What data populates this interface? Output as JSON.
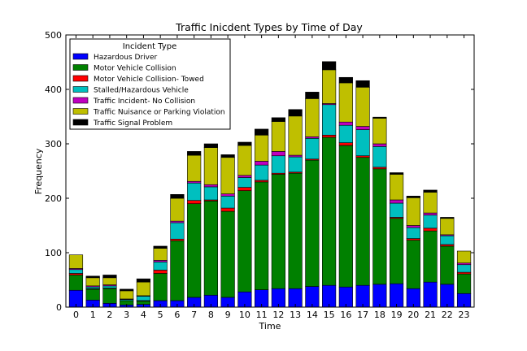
{
  "chart_data": {
    "type": "bar",
    "stacked": true,
    "title": "Traffic Inicdent Types by Time of Day",
    "xlabel": "Time",
    "ylabel": "Frequency",
    "ylim": [
      0,
      500
    ],
    "yticks": [
      0,
      100,
      200,
      300,
      400,
      500
    ],
    "categories": [
      "0",
      "1",
      "2",
      "3",
      "4",
      "5",
      "6",
      "7",
      "8",
      "9",
      "10",
      "11",
      "12",
      "13",
      "14",
      "15",
      "16",
      "17",
      "18",
      "19",
      "20",
      "21",
      "22",
      "23"
    ],
    "legend": {
      "title": "Incident Type",
      "position": "top-left"
    },
    "series": [
      {
        "name": "Hazardous Driver",
        "color": "#0000ff",
        "values": [
          31,
          13,
          7,
          4,
          5,
          12,
          12,
          18,
          22,
          18,
          28,
          32,
          34,
          34,
          38,
          40,
          37,
          40,
          42,
          43,
          34,
          46,
          42,
          25
        ]
      },
      {
        "name": "Motor Vehicle Collision",
        "color": "#008000",
        "values": [
          28,
          20,
          27,
          8,
          6,
          50,
          110,
          172,
          173,
          158,
          186,
          198,
          210,
          212,
          232,
          272,
          260,
          235,
          212,
          120,
          89,
          94,
          70,
          36
        ]
      },
      {
        "name": "Motor Vehicle Collision- Towed",
        "color": "#ff0000",
        "values": [
          3,
          1,
          1,
          0,
          1,
          6,
          3,
          6,
          2,
          6,
          6,
          3,
          2,
          2,
          2,
          4,
          5,
          3,
          3,
          2,
          3,
          5,
          3,
          3
        ]
      },
      {
        "name": "Stalled/Hazardous Vehicle",
        "color": "#00bfbf",
        "values": [
          7,
          3,
          4,
          2,
          8,
          15,
          30,
          32,
          24,
          22,
          18,
          28,
          32,
          28,
          38,
          56,
          32,
          48,
          38,
          26,
          20,
          24,
          16,
          14
        ]
      },
      {
        "name": "Traffic Incident- No Collision",
        "color": "#bf00bf",
        "values": [
          2,
          2,
          2,
          1,
          1,
          3,
          3,
          3,
          4,
          4,
          4,
          7,
          8,
          3,
          3,
          2,
          6,
          6,
          5,
          6,
          4,
          4,
          2,
          3
        ]
      },
      {
        "name": "Traffic Nuisance or Parking Violation",
        "color": "#bfbf00",
        "values": [
          25,
          15,
          13,
          15,
          25,
          22,
          42,
          48,
          68,
          67,
          55,
          48,
          55,
          72,
          70,
          62,
          72,
          72,
          47,
          47,
          51,
          38,
          30,
          22
        ]
      },
      {
        "name": "Traffic Signal Problem",
        "color": "#000000",
        "values": [
          0,
          3,
          5,
          3,
          6,
          4,
          7,
          7,
          7,
          5,
          6,
          11,
          7,
          12,
          12,
          15,
          10,
          12,
          2,
          3,
          3,
          4,
          2,
          0
        ]
      }
    ]
  }
}
